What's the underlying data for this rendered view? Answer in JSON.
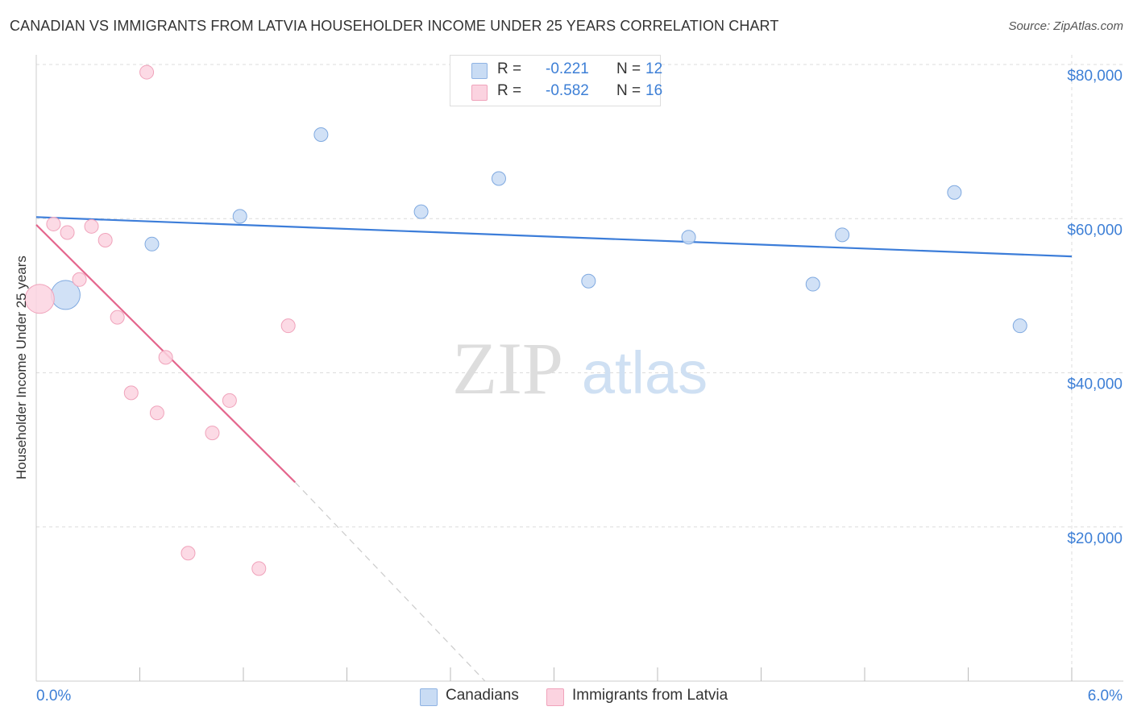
{
  "title": "CANADIAN VS IMMIGRANTS FROM LATVIA HOUSEHOLDER INCOME UNDER 25 YEARS CORRELATION CHART",
  "source": "Source: ZipAtlas.com",
  "watermark": {
    "zip": "ZIP",
    "atlas": "atlas"
  },
  "legend": {
    "rows": [
      {
        "r_label": "R =",
        "r_value": "-0.221",
        "n_label": "N =",
        "n_value": "12",
        "color": "#aac8ee"
      },
      {
        "r_label": "R =",
        "r_value": "-0.582",
        "n_label": "N =",
        "n_value": "16",
        "color": "#f7b8cb"
      }
    ]
  },
  "bottom_legend": [
    {
      "label": "Canadians",
      "color": "#aac8ee"
    },
    {
      "label": "Immigrants from Latvia",
      "color": "#f7b8cb"
    }
  ],
  "chart_data": {
    "type": "scatter",
    "title": "CANADIAN VS IMMIGRANTS FROM LATVIA HOUSEHOLDER INCOME UNDER 25 YEARS CORRELATION CHART",
    "xlabel": "",
    "ylabel": "Householder Income Under 25 years",
    "xlim": [
      0,
      6
    ],
    "ylim": [
      0,
      80000
    ],
    "x_tick_labels": [
      "0.0%",
      "6.0%"
    ],
    "y_ticks": [
      20000,
      40000,
      60000,
      80000
    ],
    "y_tick_labels": [
      "$20,000",
      "$40,000",
      "$60,000",
      "$80,000"
    ],
    "grid": true,
    "legend_position": "top-center",
    "series": [
      {
        "name": "Canadians",
        "color": "#3c7dd9",
        "fill": "#c9dcf4",
        "points": [
          {
            "x": 0.17,
            "y": 50100,
            "big": true
          },
          {
            "x": 0.67,
            "y": 56700
          },
          {
            "x": 1.18,
            "y": 60300
          },
          {
            "x": 1.65,
            "y": 70900
          },
          {
            "x": 2.23,
            "y": 60900
          },
          {
            "x": 2.68,
            "y": 65200
          },
          {
            "x": 3.2,
            "y": 51900
          },
          {
            "x": 3.78,
            "y": 57600
          },
          {
            "x": 4.5,
            "y": 51500
          },
          {
            "x": 4.67,
            "y": 57900
          },
          {
            "x": 5.32,
            "y": 63400
          },
          {
            "x": 5.7,
            "y": 46100
          }
        ],
        "trend": {
          "x": [
            0,
            6
          ],
          "y": [
            60200,
            55100
          ]
        }
      },
      {
        "name": "Immigrants from Latvia",
        "color": "#e4668d",
        "fill": "#fbd3e0",
        "points": [
          {
            "x": 0.02,
            "y": 49600,
            "big": true
          },
          {
            "x": 0.1,
            "y": 59300
          },
          {
            "x": 0.18,
            "y": 58200
          },
          {
            "x": 0.25,
            "y": 52100
          },
          {
            "x": 0.32,
            "y": 59000
          },
          {
            "x": 0.4,
            "y": 57200
          },
          {
            "x": 0.47,
            "y": 47200
          },
          {
            "x": 0.55,
            "y": 37400
          },
          {
            "x": 0.64,
            "y": 79000
          },
          {
            "x": 0.7,
            "y": 34800
          },
          {
            "x": 0.75,
            "y": 42000
          },
          {
            "x": 0.88,
            "y": 16600
          },
          {
            "x": 1.02,
            "y": 32200
          },
          {
            "x": 1.12,
            "y": 36400
          },
          {
            "x": 1.29,
            "y": 14600
          },
          {
            "x": 1.46,
            "y": 46100
          }
        ],
        "trend": {
          "x": [
            0,
            1.5
          ],
          "y": [
            59200,
            25800
          ]
        },
        "trend_extension": {
          "x": [
            1.5,
            2.6
          ],
          "y": [
            25800,
            0
          ]
        }
      }
    ]
  }
}
